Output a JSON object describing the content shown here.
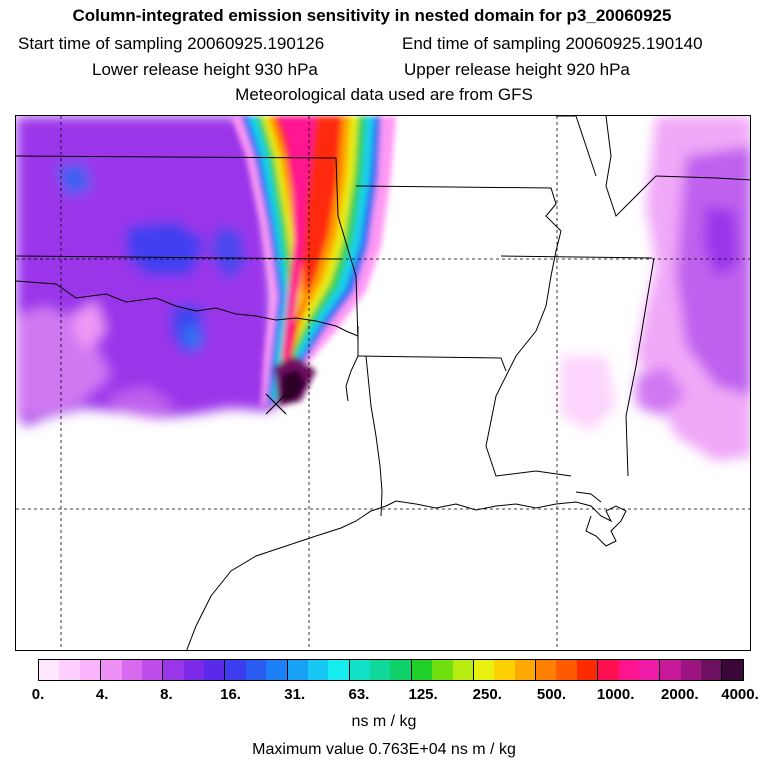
{
  "header": {
    "title": "Column-integrated emission sensitivity in nested domain for p3_20060925",
    "start_label": "Start time of sampling 20060925.190126",
    "end_label": "End time of sampling 20060925.190140",
    "lower_label": "Lower release height  930 hPa",
    "upper_label": "Upper release height  920 hPa",
    "met_label": "Meteorological data used are from GFS"
  },
  "colorbar": {
    "colors": [
      "#ffe8ff",
      "#ffd0ff",
      "#f9b4fb",
      "#ef90f6",
      "#d86af0",
      "#c04cec",
      "#9a36ea",
      "#7a2ae6",
      "#5a2aea",
      "#3c3cf0",
      "#2a5cf2",
      "#1e80f6",
      "#18a2f6",
      "#18c8f4",
      "#14ecee",
      "#10e0c8",
      "#10d89a",
      "#10d06a",
      "#20d028",
      "#70e010",
      "#b8ec10",
      "#e8f010",
      "#ffd000",
      "#ffa800",
      "#ff8000",
      "#ff5a00",
      "#ff2a00",
      "#ff1050",
      "#ff1490",
      "#f01aa8",
      "#c8189a",
      "#9c1480",
      "#6e1060",
      "#3a0838"
    ],
    "ticks": [
      "0.",
      "4.",
      "8.",
      "16.",
      "31.",
      "63.",
      "125.",
      "250.",
      "500.",
      "1000.",
      "2000.",
      "4000."
    ],
    "units": "ns m / kg"
  },
  "footer": {
    "max_value": "Maximum value  0.763E+04 ns m / kg"
  },
  "map": {
    "release_marker": "x-marker"
  }
}
